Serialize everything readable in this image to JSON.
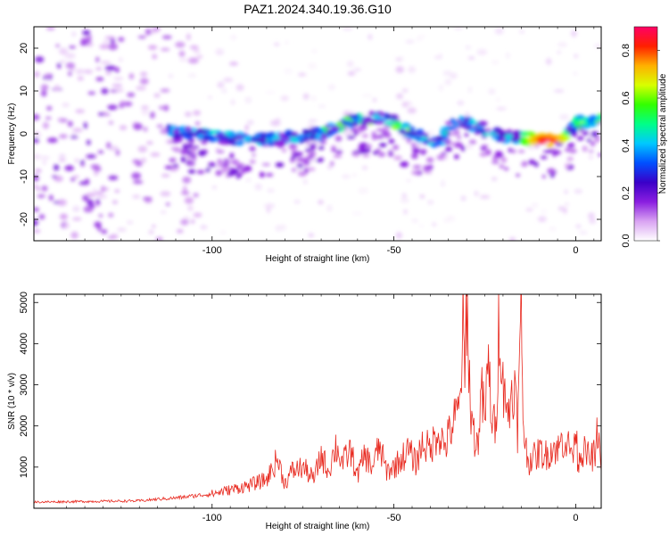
{
  "chart_data": [
    {
      "type": "heatmap",
      "title": "PAZ1.2024.340.19.36.G10",
      "xlabel": "Height of straight line (km)",
      "ylabel": "Frequency (Hz)",
      "xlim": [
        -149,
        7
      ],
      "ylim": [
        -25,
        25
      ],
      "x_ticks": [
        -100,
        -50,
        0
      ],
      "y_ticks": [
        -20,
        -10,
        0,
        10,
        20
      ],
      "colorbar": {
        "label": "Normalized spectral amplitude",
        "range": [
          0.0,
          0.9
        ],
        "ticks": [
          0.0,
          0.2,
          0.4,
          0.6,
          0.8
        ],
        "colors": [
          "#ffffff",
          "#d9a3f2",
          "#8a1ee0",
          "#3a00c8",
          "#0050ff",
          "#00c8ff",
          "#00ff88",
          "#33ff00",
          "#d8ff00",
          "#ffb000",
          "#ff2000",
          "#ff0066"
        ]
      },
      "ridge": {
        "description": "band of strong amplitude along main frequency track",
        "x": [
          -112,
          -105,
          -100,
          -95,
          -90,
          -85,
          -80,
          -75,
          -70,
          -65,
          -60,
          -55,
          -50,
          -45,
          -40,
          -37,
          -35,
          -32,
          -30,
          -27,
          -25,
          -20,
          -15,
          -10,
          -5,
          -2,
          0,
          3,
          7
        ],
        "y": [
          0.5,
          0,
          -0.5,
          -1,
          -1.5,
          -1.2,
          -1,
          -0.5,
          0,
          2,
          3.5,
          3.8,
          3,
          0,
          -1.5,
          -2,
          2,
          3,
          2.5,
          1.5,
          1,
          -0.5,
          -1,
          -1.5,
          -1.5,
          0,
          2.5,
          3,
          3
        ]
      },
      "peak_amplitude": {
        "x": -8,
        "y": -1.5,
        "value": 0.9
      }
    },
    {
      "type": "line",
      "xlabel": "Height of straight line (km)",
      "ylabel": "SNR (10 * v/v)",
      "xlim": [
        -149,
        7
      ],
      "ylim": [
        0,
        5200
      ],
      "x_ticks": [
        -100,
        -50,
        0
      ],
      "y_ticks": [
        1000,
        2000,
        3000,
        4000,
        5000
      ],
      "color": "#e8281e",
      "series": [
        {
          "x": [
            -149,
            -140,
            -130,
            -120,
            -115,
            -110,
            -105,
            -100,
            -95,
            -90,
            -85,
            -82,
            -80,
            -78,
            -75,
            -72,
            -70,
            -68,
            -66,
            -64,
            -62,
            -60,
            -58,
            -56,
            -54,
            -52,
            -50,
            -48,
            -46,
            -44,
            -42,
            -40,
            -38,
            -36,
            -34,
            -32,
            -31,
            -30.5,
            -30,
            -29,
            -28,
            -27,
            -26,
            -25,
            -24,
            -23,
            -22,
            -21,
            -20,
            -19.5,
            -19,
            -18,
            -17,
            -16,
            -15,
            -14.5,
            -14,
            -13,
            -12,
            -11,
            -10,
            -9,
            -8,
            -7,
            -6,
            -5,
            -4,
            -3,
            -2,
            -1,
            -0.5,
            0,
            0.5,
            1,
            2,
            3,
            4,
            5,
            5.5,
            6,
            7
          ],
          "y": [
            150,
            160,
            170,
            180,
            220,
            250,
            300,
            350,
            450,
            550,
            700,
            1200,
            600,
            900,
            1000,
            700,
            1300,
            900,
            1500,
            1100,
            1400,
            800,
            1300,
            1000,
            1500,
            900,
            1000,
            1200,
            1400,
            1100,
            1600,
            1400,
            1900,
            1500,
            2000,
            2400,
            4300,
            3000,
            5200,
            2500,
            1800,
            1500,
            2800,
            2200,
            3500,
            2100,
            1900,
            4900,
            2900,
            3400,
            2100,
            2600,
            3200,
            1900,
            4700,
            2400,
            1600,
            1100,
            1300,
            1200,
            1400,
            1300,
            1300,
            1400,
            1500,
            1400,
            1600,
            1700,
            1500,
            1400,
            1300,
            2400,
            1100,
            1300,
            1400,
            1300,
            1200,
            1300,
            1200,
            2000,
            900
          ]
        }
      ]
    }
  ]
}
